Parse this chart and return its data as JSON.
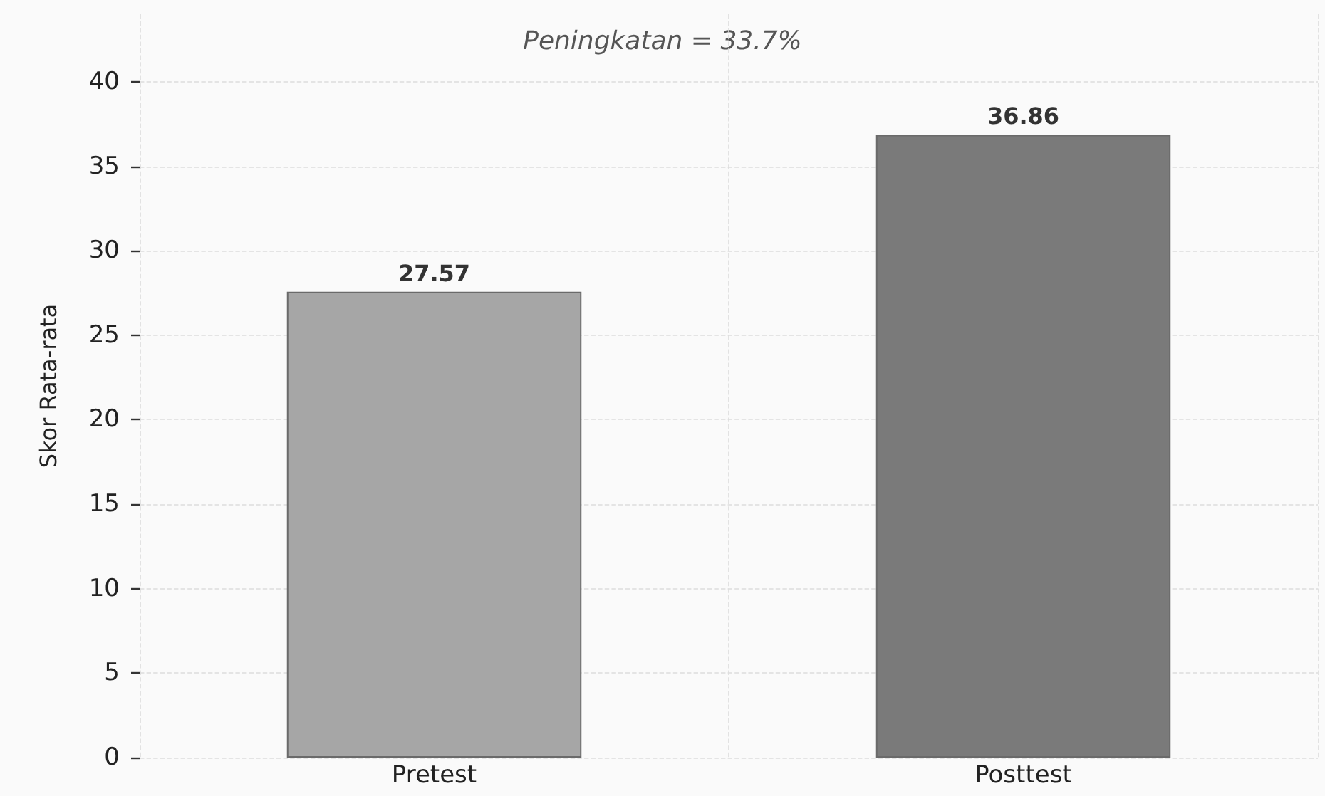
{
  "chart_data": {
    "type": "bar",
    "ylabel": "Skor Rata-rata",
    "categories": [
      "Pretest",
      "Posttest"
    ],
    "values": [
      27.57,
      36.86
    ],
    "colors": [
      "#a6a6a6",
      "#7a7a7a"
    ],
    "ylim": [
      0,
      44
    ],
    "yticks": [
      0,
      5,
      10,
      15,
      20,
      25,
      30,
      35,
      40
    ],
    "grid": true,
    "data_labels": true,
    "annotations": [
      "Peningkatan = 33.7%"
    ]
  }
}
